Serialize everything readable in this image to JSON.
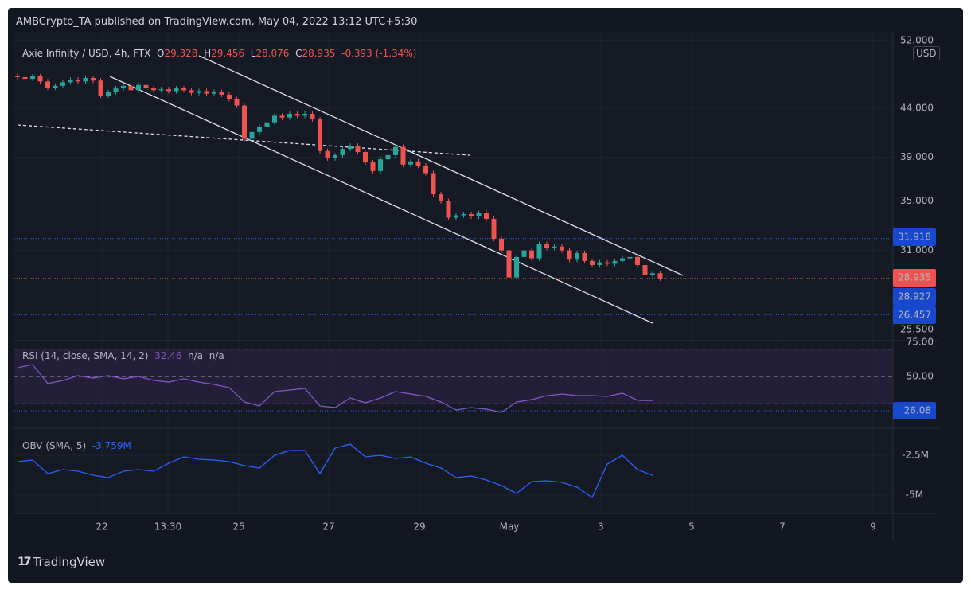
{
  "header": {
    "publish_text": "AMBCrypto_TA published on TradingView.com, May 04, 2022 13:12 UTC+5:30"
  },
  "legend": {
    "symbol": "Axie Infinity / USD, 4h, FTX",
    "o_label": "O",
    "o": "29.328",
    "h_label": "H",
    "h": "29.456",
    "l_label": "L",
    "l": "28.076",
    "c_label": "C",
    "c": "28.935",
    "change": "-0.393 (-1.34%)"
  },
  "currency": "USD",
  "rsi_legend": {
    "title": "RSI (14, close, SMA, 14, 2)",
    "value": "32.46",
    "na1": "n/a",
    "na2": "n/a"
  },
  "obv_legend": {
    "title": "OBV (SMA, 5)",
    "value": "-3.759M"
  },
  "footer": {
    "brand": "TradingView"
  },
  "colors": {
    "up": "#26a69a",
    "down": "#ef5350",
    "rsi": "#7e57c2",
    "obv": "#2962ff",
    "label_blue": "#1848cc",
    "label_red": "#ef5350"
  },
  "chart_data": [
    {
      "type": "candlestick",
      "scale": "log",
      "timeframe": "4h",
      "y_ticks": [
        "52.000",
        "44.000",
        "39.000",
        "35.000",
        "31.000",
        "25.500"
      ],
      "x_ticks": [
        "22",
        "13:30",
        "25",
        "27",
        "29",
        "May",
        "3",
        "5",
        "7",
        "9"
      ],
      "closes": [
        47.5,
        47.3,
        47.6,
        47.0,
        46.3,
        46.5,
        46.9,
        47.2,
        47.0,
        47.4,
        47.1,
        45.4,
        45.8,
        46.2,
        46.5,
        46.0,
        46.6,
        46.2,
        46.0,
        46.1,
        45.9,
        46.2,
        46.0,
        45.7,
        45.9,
        45.6,
        45.8,
        45.5,
        45.0,
        44.3,
        40.8,
        41.5,
        42.0,
        42.5,
        43.2,
        43.0,
        43.4,
        43.2,
        43.4,
        42.8,
        39.6,
        38.9,
        39.2,
        39.8,
        40.1,
        39.5,
        38.5,
        37.7,
        38.8,
        39.2,
        40.0,
        38.3,
        38.6,
        38.2,
        37.5,
        35.6,
        35.0,
        33.6,
        33.8,
        33.9,
        33.7,
        34.0,
        33.5,
        31.9,
        31.0,
        29.0,
        30.5,
        31.0,
        30.4,
        31.5,
        31.2,
        31.3,
        31.0,
        30.3,
        30.8,
        30.2,
        29.9,
        30.1,
        30.0,
        30.2,
        30.4,
        30.5,
        29.9,
        29.2,
        29.3,
        28.935
      ],
      "price_labels": [
        {
          "value": "31.918",
          "kind": "blue"
        },
        {
          "value": "28.935",
          "kind": "red"
        },
        {
          "value": "28.927",
          "kind": "blue"
        },
        {
          "value": "26.457",
          "kind": "blue"
        }
      ],
      "lowest_low": 26.457
    },
    {
      "type": "line",
      "name": "RSI",
      "y_ticks": [
        "75.00",
        "50.00"
      ],
      "bands": [
        70,
        50,
        30
      ],
      "values": [
        56.4,
        58.7,
        44.8,
        47.1,
        50.6,
        48.8,
        50.6,
        48.3,
        50,
        47.1,
        45.9,
        48.3,
        45.9,
        44.2,
        41.9,
        31.4,
        28.5,
        39,
        40.1,
        41.3,
        28.5,
        27.3,
        34.3,
        30.8,
        34.3,
        39,
        37.2,
        35.5,
        31.4,
        25.6,
        27.3,
        26.2,
        23.8,
        31.4,
        33.1,
        36,
        37.2,
        36,
        36,
        35.5,
        37.8,
        32.6,
        32.46
      ],
      "label": "26.08"
    },
    {
      "type": "line",
      "name": "OBV",
      "y_ticks": [
        "-2.5M",
        "-5M"
      ],
      "values_m": [
        -2.9,
        -2.8,
        -3.65,
        -3.4,
        -3.5,
        -3.75,
        -3.9,
        -3.5,
        -3.4,
        -3.5,
        -3.0,
        -2.6,
        -2.75,
        -2.8,
        -2.9,
        -3.15,
        -3.3,
        -2.5,
        -2.2,
        -2.2,
        -3.65,
        -2.05,
        -1.8,
        -2.6,
        -2.5,
        -2.7,
        -2.6,
        -3.0,
        -3.3,
        -3.9,
        -3.8,
        -4.05,
        -4.4,
        -4.9,
        -4.15,
        -4.1,
        -4.2,
        -4.5,
        -5.15,
        -3.05,
        -2.5,
        -3.4,
        -3.759
      ]
    }
  ]
}
